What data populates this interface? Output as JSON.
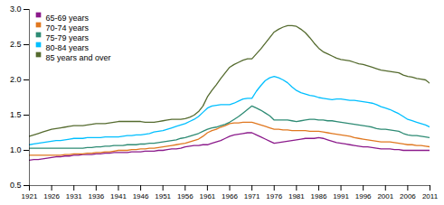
{
  "chart_data": {
    "type": "line",
    "x": [
      1921,
      1922,
      1923,
      1924,
      1925,
      1926,
      1927,
      1928,
      1929,
      1930,
      1931,
      1932,
      1933,
      1934,
      1935,
      1936,
      1937,
      1938,
      1939,
      1940,
      1941,
      1942,
      1943,
      1944,
      1945,
      1946,
      1947,
      1948,
      1949,
      1950,
      1951,
      1952,
      1953,
      1954,
      1955,
      1956,
      1957,
      1958,
      1959,
      1960,
      1961,
      1962,
      1963,
      1964,
      1965,
      1966,
      1967,
      1968,
      1969,
      1970,
      1971,
      1972,
      1973,
      1974,
      1975,
      1976,
      1977,
      1978,
      1979,
      1980,
      1981,
      1982,
      1983,
      1984,
      1985,
      1986,
      1987,
      1988,
      1989,
      1990,
      1991,
      1992,
      1993,
      1994,
      1995,
      1996,
      1997,
      1998,
      1999,
      2000,
      2001,
      2002,
      2003,
      2004,
      2005,
      2006,
      2007,
      2008,
      2009,
      2010,
      2011
    ],
    "series": [
      {
        "name": "65-69 years",
        "color": "#8b1a8b",
        "values": [
          0.86,
          0.87,
          0.87,
          0.88,
          0.89,
          0.9,
          0.91,
          0.91,
          0.92,
          0.92,
          0.93,
          0.93,
          0.94,
          0.94,
          0.94,
          0.95,
          0.95,
          0.96,
          0.96,
          0.97,
          0.97,
          0.97,
          0.97,
          0.98,
          0.98,
          0.98,
          0.99,
          0.99,
          0.99,
          1.0,
          1.0,
          1.01,
          1.02,
          1.02,
          1.03,
          1.05,
          1.06,
          1.07,
          1.07,
          1.08,
          1.08,
          1.1,
          1.12,
          1.14,
          1.17,
          1.2,
          1.22,
          1.23,
          1.24,
          1.25,
          1.25,
          1.22,
          1.19,
          1.16,
          1.13,
          1.1,
          1.11,
          1.12,
          1.13,
          1.14,
          1.15,
          1.16,
          1.17,
          1.17,
          1.17,
          1.18,
          1.17,
          1.15,
          1.13,
          1.11,
          1.1,
          1.09,
          1.08,
          1.07,
          1.06,
          1.05,
          1.05,
          1.04,
          1.03,
          1.02,
          1.02,
          1.02,
          1.01,
          1.01,
          1.0,
          1.0,
          1.0,
          1.0,
          1.0,
          1.0,
          1.0
        ]
      },
      {
        "name": "70-74 years",
        "color": "#e07820",
        "values": [
          0.93,
          0.93,
          0.93,
          0.93,
          0.93,
          0.93,
          0.93,
          0.93,
          0.94,
          0.94,
          0.95,
          0.95,
          0.95,
          0.96,
          0.96,
          0.97,
          0.97,
          0.98,
          0.98,
          0.99,
          1.0,
          1.0,
          1.0,
          1.01,
          1.01,
          1.02,
          1.02,
          1.03,
          1.03,
          1.04,
          1.05,
          1.06,
          1.07,
          1.08,
          1.09,
          1.1,
          1.12,
          1.14,
          1.16,
          1.2,
          1.25,
          1.28,
          1.3,
          1.33,
          1.35,
          1.38,
          1.39,
          1.39,
          1.4,
          1.4,
          1.4,
          1.38,
          1.36,
          1.34,
          1.32,
          1.3,
          1.3,
          1.29,
          1.29,
          1.28,
          1.28,
          1.28,
          1.28,
          1.27,
          1.27,
          1.27,
          1.26,
          1.25,
          1.24,
          1.23,
          1.22,
          1.21,
          1.2,
          1.18,
          1.17,
          1.16,
          1.15,
          1.14,
          1.13,
          1.12,
          1.12,
          1.12,
          1.11,
          1.1,
          1.09,
          1.08,
          1.08,
          1.07,
          1.07,
          1.06,
          1.05
        ]
      },
      {
        "name": "75-79 years",
        "color": "#2e8b74",
        "values": [
          1.03,
          1.03,
          1.03,
          1.03,
          1.03,
          1.03,
          1.03,
          1.03,
          1.03,
          1.03,
          1.03,
          1.03,
          1.03,
          1.04,
          1.04,
          1.05,
          1.05,
          1.06,
          1.06,
          1.07,
          1.07,
          1.07,
          1.08,
          1.08,
          1.08,
          1.09,
          1.09,
          1.1,
          1.1,
          1.11,
          1.12,
          1.13,
          1.14,
          1.15,
          1.17,
          1.18,
          1.2,
          1.22,
          1.24,
          1.27,
          1.3,
          1.32,
          1.33,
          1.35,
          1.37,
          1.4,
          1.44,
          1.48,
          1.53,
          1.58,
          1.63,
          1.6,
          1.57,
          1.53,
          1.49,
          1.43,
          1.43,
          1.43,
          1.43,
          1.42,
          1.41,
          1.42,
          1.43,
          1.44,
          1.44,
          1.43,
          1.43,
          1.42,
          1.42,
          1.41,
          1.4,
          1.39,
          1.38,
          1.37,
          1.36,
          1.35,
          1.34,
          1.33,
          1.31,
          1.3,
          1.3,
          1.29,
          1.28,
          1.27,
          1.24,
          1.22,
          1.21,
          1.21,
          1.2,
          1.19,
          1.18
        ]
      },
      {
        "name": "80-84 years",
        "color": "#00bfff",
        "values": [
          1.08,
          1.09,
          1.1,
          1.11,
          1.12,
          1.13,
          1.14,
          1.14,
          1.15,
          1.16,
          1.17,
          1.17,
          1.17,
          1.18,
          1.18,
          1.18,
          1.18,
          1.19,
          1.19,
          1.19,
          1.19,
          1.2,
          1.21,
          1.21,
          1.22,
          1.22,
          1.23,
          1.24,
          1.26,
          1.27,
          1.28,
          1.3,
          1.32,
          1.34,
          1.36,
          1.38,
          1.41,
          1.44,
          1.48,
          1.54,
          1.6,
          1.63,
          1.64,
          1.65,
          1.65,
          1.65,
          1.67,
          1.7,
          1.73,
          1.74,
          1.74,
          1.84,
          1.92,
          1.99,
          2.03,
          2.05,
          2.03,
          2.0,
          1.96,
          1.9,
          1.85,
          1.82,
          1.8,
          1.78,
          1.77,
          1.75,
          1.74,
          1.73,
          1.72,
          1.73,
          1.73,
          1.72,
          1.71,
          1.71,
          1.7,
          1.69,
          1.68,
          1.67,
          1.65,
          1.62,
          1.6,
          1.58,
          1.55,
          1.52,
          1.48,
          1.44,
          1.42,
          1.4,
          1.38,
          1.36,
          1.33
        ]
      },
      {
        "name": "85 years and over",
        "color": "#556b2f",
        "values": [
          1.2,
          1.22,
          1.24,
          1.26,
          1.28,
          1.3,
          1.31,
          1.32,
          1.33,
          1.34,
          1.35,
          1.35,
          1.35,
          1.36,
          1.37,
          1.38,
          1.38,
          1.38,
          1.39,
          1.4,
          1.41,
          1.41,
          1.41,
          1.41,
          1.41,
          1.41,
          1.4,
          1.4,
          1.4,
          1.41,
          1.42,
          1.43,
          1.44,
          1.44,
          1.44,
          1.45,
          1.47,
          1.5,
          1.55,
          1.63,
          1.76,
          1.85,
          1.93,
          2.02,
          2.1,
          2.18,
          2.22,
          2.25,
          2.28,
          2.3,
          2.3,
          2.37,
          2.44,
          2.52,
          2.6,
          2.68,
          2.72,
          2.75,
          2.77,
          2.77,
          2.76,
          2.72,
          2.67,
          2.6,
          2.52,
          2.45,
          2.4,
          2.37,
          2.34,
          2.31,
          2.29,
          2.28,
          2.27,
          2.25,
          2.23,
          2.22,
          2.2,
          2.18,
          2.16,
          2.14,
          2.13,
          2.12,
          2.11,
          2.1,
          2.07,
          2.05,
          2.04,
          2.02,
          2.01,
          2.0,
          1.95
        ]
      }
    ],
    "xlim": [
      1921,
      2011
    ],
    "xticks": [
      1921,
      1926,
      1931,
      1936,
      1941,
      1946,
      1951,
      1956,
      1961,
      1966,
      1971,
      1976,
      1981,
      1986,
      1991,
      1996,
      2001,
      2006,
      2011
    ],
    "ylim": [
      0.5,
      3.0
    ],
    "yticks": [
      0.5,
      {
        "value": 1.0,
        "label": "1.0"
      },
      1.5,
      {
        "value": 2.0,
        "label": "2.0"
      },
      2.5,
      {
        "value": 3.0,
        "label": "3.0"
      }
    ],
    "legend": "upper left",
    "grid": false
  }
}
